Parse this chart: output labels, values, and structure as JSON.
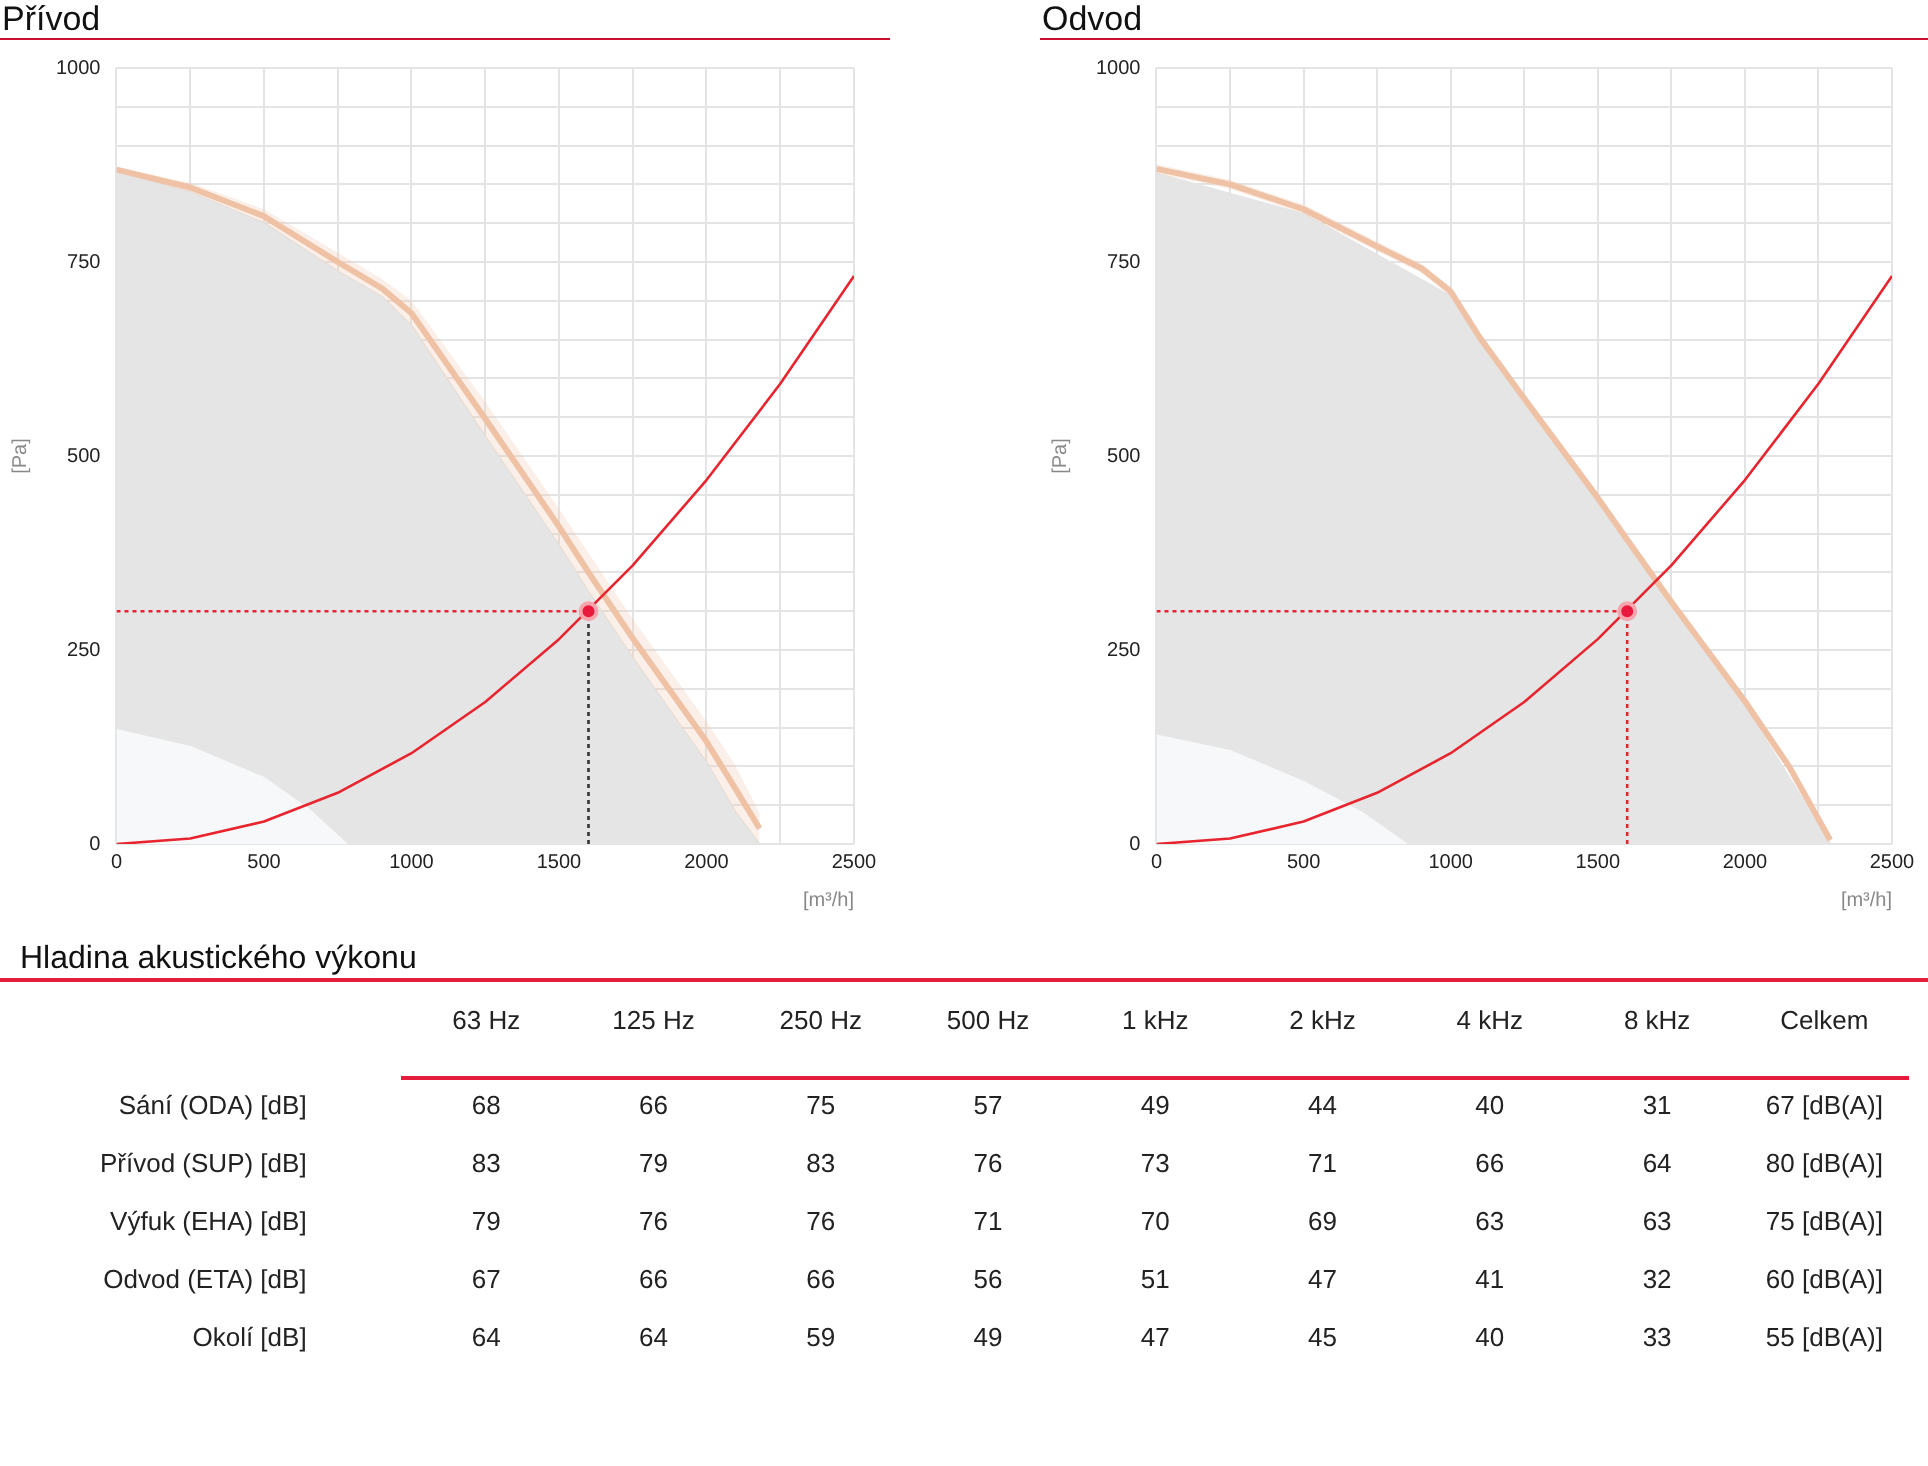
{
  "chart_data": [
    {
      "type": "line",
      "title": "Přívod",
      "xlabel": "[m³/h]",
      "ylabel": "[Pa]",
      "xlim": [
        0,
        2500
      ],
      "ylim": [
        0,
        1000
      ],
      "xticks": [
        0,
        {
          "value": 250,
          "label": null
        },
        500,
        {
          "value": 750,
          "label": null
        },
        1000,
        {
          "value": 1250,
          "label": null
        },
        1500,
        {
          "value": 1750,
          "label": null
        },
        2000,
        {
          "value": 2250,
          "label": null
        },
        2500
      ],
      "yticks": [
        0,
        {
          "value": 50,
          "label": null
        },
        {
          "value": 100,
          "label": null
        },
        {
          "value": 150,
          "label": null
        },
        {
          "value": 200,
          "label": null
        },
        250,
        {
          "value": 300,
          "label": null
        },
        {
          "value": 350,
          "label": null
        },
        {
          "value": 400,
          "label": null
        },
        {
          "value": 450,
          "label": null
        },
        500,
        {
          "value": 550,
          "label": null
        },
        {
          "value": 600,
          "label": null
        },
        {
          "value": 650,
          "label": null
        },
        {
          "value": 700,
          "label": null
        },
        750,
        {
          "value": 800,
          "label": null
        },
        {
          "value": 850,
          "label": null
        },
        {
          "value": 900,
          "label": null
        },
        {
          "value": 950,
          "label": null
        },
        1000
      ],
      "grid": true,
      "legend": false,
      "series": [
        {
          "type": "area",
          "color": "#e4e5e4",
          "x": [
            0,
            250,
            500,
            750,
            900,
            1000,
            1250,
            1500,
            1600,
            1750,
            2000,
            2100,
            2180
          ],
          "values": [
            866,
            840,
            800,
            738,
            705,
            668,
            525,
            385,
            325,
            240,
            105,
            40,
            0
          ]
        },
        {
          "type": "area",
          "color": "#f7f8f9",
          "x": [
            0,
            250,
            500,
            650,
            780
          ],
          "values": [
            147,
            125,
            85,
            45,
            0
          ]
        },
        {
          "type": "line",
          "color": "#efc2a6",
          "x": [
            0,
            250,
            500,
            750,
            900,
            1000,
            1250,
            1500,
            1600,
            1750,
            2000,
            2100,
            2180
          ],
          "values": [
            869,
            846,
            809,
            750,
            716,
            684,
            548,
            409,
            350,
            265,
            132,
            70,
            20
          ],
          "lower": [
            866,
            840,
            800,
            738,
            705,
            668,
            525,
            385,
            325,
            240,
            105,
            40,
            0
          ],
          "upper": [
            872,
            852,
            818,
            762,
            728,
            700,
            570,
            432,
            375,
            290,
            158,
            100,
            40
          ]
        },
        {
          "type": "line",
          "color": "#e8242f",
          "x": [
            0,
            250,
            500,
            750,
            1000,
            1250,
            1500,
            1750,
            2000,
            2250,
            2500
          ],
          "values": [
            0,
            7,
            29,
            66,
            117,
            183,
            264,
            359,
            469,
            593,
            732
          ]
        },
        {
          "type": "line",
          "color": "#e8242f",
          "line_style": "dotted",
          "x": [
            0,
            1600
          ],
          "values": [
            300,
            300
          ]
        },
        {
          "type": "line",
          "color": "#333333",
          "line_style": "dotted",
          "x": [
            1600,
            1600
          ],
          "values": [
            0,
            300
          ]
        },
        {
          "type": "scatter",
          "color": "#e8193c",
          "marker": "circle",
          "x": [
            1600
          ],
          "values": [
            300
          ]
        }
      ]
    },
    {
      "type": "line",
      "title": "Odvod",
      "xlabel": "[m³/h]",
      "ylabel": "[Pa]",
      "xlim": [
        0,
        2500
      ],
      "ylim": [
        0,
        1000
      ],
      "xticks": [
        0,
        {
          "value": 250,
          "label": null
        },
        500,
        {
          "value": 750,
          "label": null
        },
        1000,
        {
          "value": 1250,
          "label": null
        },
        1500,
        {
          "value": 1750,
          "label": null
        },
        2000,
        {
          "value": 2250,
          "label": null
        },
        2500
      ],
      "yticks": [
        0,
        {
          "value": 50,
          "label": null
        },
        {
          "value": 100,
          "label": null
        },
        {
          "value": 150,
          "label": null
        },
        {
          "value": 200,
          "label": null
        },
        250,
        {
          "value": 300,
          "label": null
        },
        {
          "value": 350,
          "label": null
        },
        {
          "value": 400,
          "label": null
        },
        {
          "value": 450,
          "label": null
        },
        500,
        {
          "value": 550,
          "label": null
        },
        {
          "value": 600,
          "label": null
        },
        {
          "value": 650,
          "label": null
        },
        {
          "value": 700,
          "label": null
        },
        750,
        {
          "value": 800,
          "label": null
        },
        {
          "value": 850,
          "label": null
        },
        {
          "value": 900,
          "label": null
        },
        {
          "value": 950,
          "label": null
        },
        1000
      ],
      "grid": true,
      "legend": false,
      "series": [
        {
          "type": "area",
          "color": "#e4e5e4",
          "x": [
            0,
            500,
            1000,
            1100,
            1500,
            2000,
            2290
          ],
          "values": [
            864,
            812,
            706,
            646,
            440,
            178,
            0
          ]
        },
        {
          "type": "area",
          "color": "#f7f8f9",
          "x": [
            0,
            250,
            500,
            700,
            850
          ],
          "values": [
            140,
            120,
            80,
            40,
            0
          ]
        },
        {
          "type": "line",
          "color": "#efc2a6",
          "x": [
            0,
            250,
            500,
            750,
            900,
            1000,
            1100,
            1250,
            1500,
            1600,
            1750,
            2000,
            2150,
            2290
          ],
          "values": [
            870,
            850,
            818,
            770,
            742,
            712,
            652,
            574,
            446,
            392,
            312,
            184,
            100,
            5
          ],
          "lower": [
            864,
            844,
            812,
            764,
            736,
            706,
            646,
            568,
            440,
            386,
            306,
            178,
            94,
            0
          ],
          "upper": [
            876,
            856,
            824,
            776,
            748,
            718,
            658,
            580,
            452,
            398,
            318,
            190,
            106,
            12
          ]
        },
        {
          "type": "line",
          "color": "#e8242f",
          "x": [
            0,
            250,
            500,
            750,
            1000,
            1250,
            1500,
            1750,
            2000,
            2250,
            2500
          ],
          "values": [
            0,
            7,
            29,
            66,
            117,
            183,
            264,
            359,
            469,
            593,
            732
          ]
        },
        {
          "type": "line",
          "color": "#e8242f",
          "line_style": "dotted",
          "x": [
            0,
            1600
          ],
          "values": [
            300,
            300
          ]
        },
        {
          "type": "line",
          "color": "#e8242f",
          "line_style": "dotted",
          "x": [
            1600,
            1600
          ],
          "values": [
            0,
            300
          ]
        },
        {
          "type": "scatter",
          "color": "#e8193c",
          "marker": "circle",
          "x": [
            1600
          ],
          "values": [
            300
          ]
        }
      ]
    },
    {
      "type": "other",
      "title": "Hladina akustického výkonu",
      "categories": [
        "63 Hz",
        "125 Hz",
        "250 Hz",
        "500 Hz",
        "1 kHz",
        "2 kHz",
        "4 kHz",
        "8 kHz",
        "Celkem"
      ],
      "y_categories": [
        "Sání (ODA) [dB]",
        "Přívod (SUP) [dB]",
        "Výfuk (EHA) [dB]",
        "Odvod (ETA) [dB]",
        "Okolí [dB]"
      ],
      "cell_labels": [
        [
          "68",
          "66",
          "75",
          "57",
          "49",
          "44",
          "40",
          "31",
          "67 [dB(A)]"
        ],
        [
          "83",
          "79",
          "83",
          "76",
          "73",
          "71",
          "66",
          "64",
          "80 [dB(A)]"
        ],
        [
          "79",
          "76",
          "76",
          "71",
          "70",
          "69",
          "63",
          "63",
          "75 [dB(A)]"
        ],
        [
          "67",
          "66",
          "66",
          "56",
          "51",
          "47",
          "41",
          "32",
          "60 [dB(A)]"
        ],
        [
          "64",
          "64",
          "59",
          "49",
          "47",
          "45",
          "40",
          "33",
          "55 [dB(A)]"
        ]
      ]
    }
  ]
}
